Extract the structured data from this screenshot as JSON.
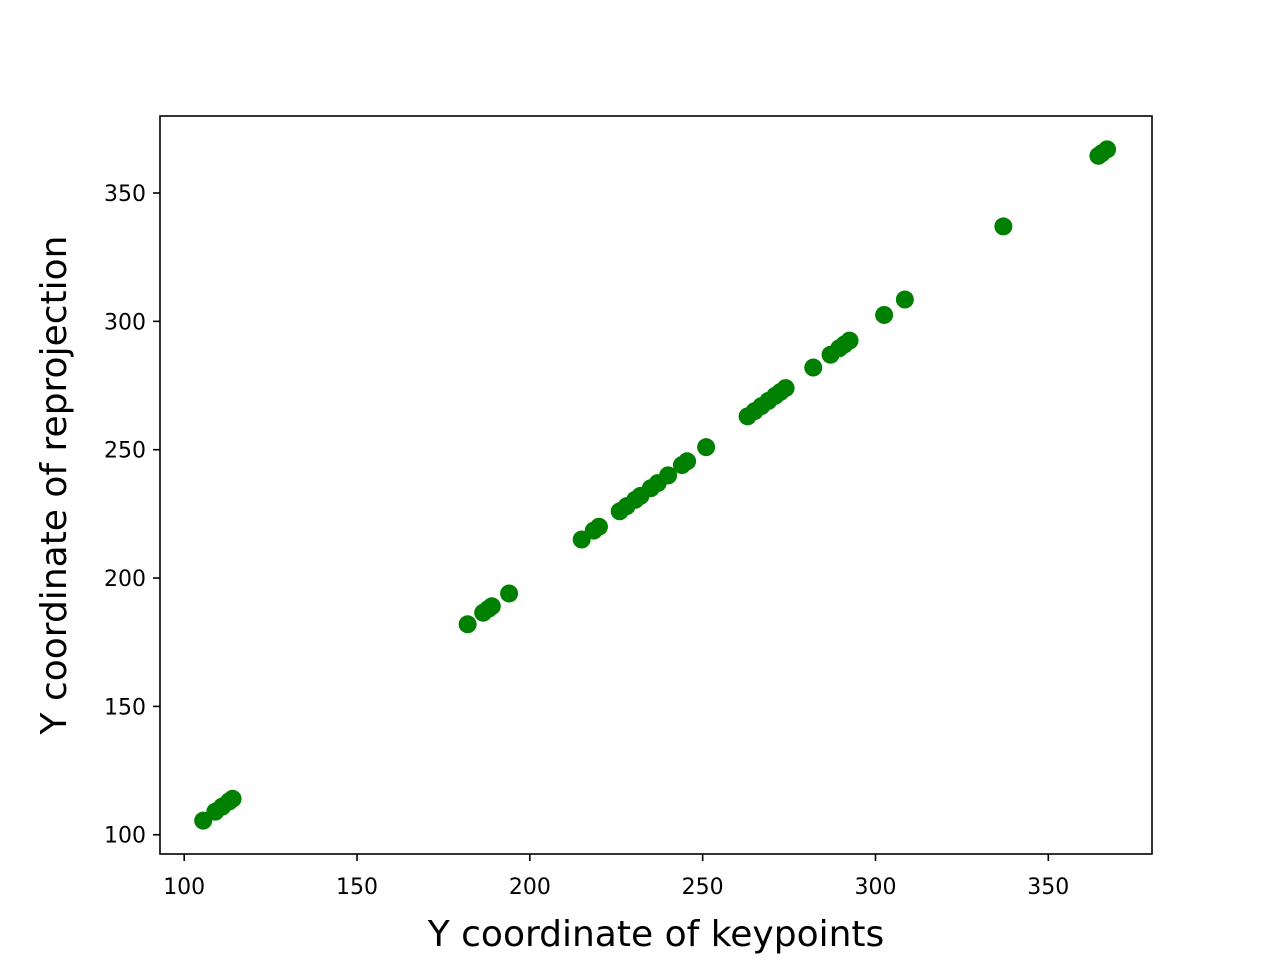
{
  "chart_data": {
    "type": "scatter",
    "title": "",
    "xlabel": "Y coordinate of keypoints",
    "ylabel": "Y coordinate of reprojection",
    "xlim": [
      93,
      380
    ],
    "ylim": [
      92.5,
      380
    ],
    "xticks": [
      100,
      150,
      200,
      250,
      300,
      350
    ],
    "yticks": [
      100,
      150,
      200,
      250,
      300,
      350
    ],
    "grid": false,
    "legend": "none",
    "marker_color": "#008000",
    "series": [
      {
        "x": [
          105.5,
          109,
          111,
          113,
          114,
          182,
          186.5,
          188,
          189,
          194,
          215,
          218.5,
          220,
          226,
          228,
          230.5,
          232,
          235,
          237,
          240,
          244,
          245.5,
          251,
          263,
          265,
          267,
          269,
          271,
          272.5,
          274,
          282,
          287,
          289.5,
          291,
          292.5,
          302.5,
          308.5,
          337,
          364.5,
          365.5,
          367
        ],
        "y": [
          105.5,
          109,
          111,
          113,
          114,
          182,
          186.5,
          188,
          189,
          194,
          215,
          218.5,
          220,
          226,
          228,
          230.5,
          232,
          235,
          237,
          240,
          244,
          245.5,
          251,
          263,
          265,
          267,
          269,
          271,
          272.5,
          274,
          282,
          287,
          289.5,
          291,
          292.5,
          302.5,
          308.5,
          337,
          364.5,
          365.5,
          367
        ]
      }
    ]
  }
}
